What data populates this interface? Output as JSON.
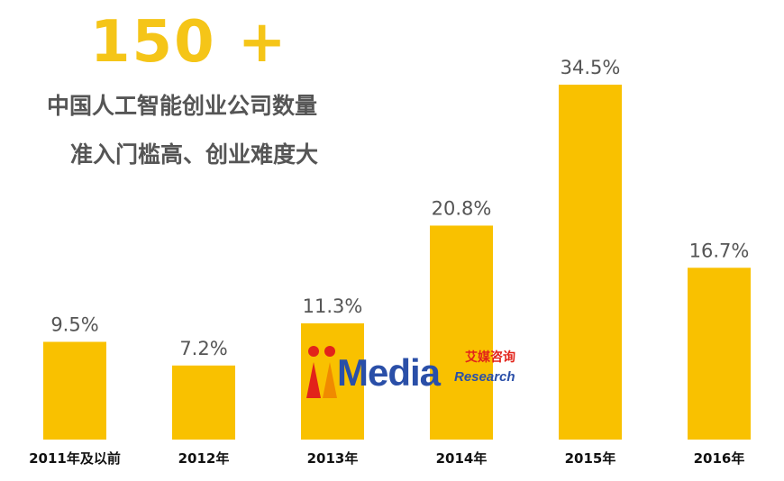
{
  "headline": "150 +",
  "subtitle_line1": "中国人工智能创业公司数量",
  "subtitle_line2": "准入门槛高、创业难度大",
  "watermark": {
    "brand": "Media",
    "cn": "艾媒咨询",
    "en": "Research"
  },
  "colors": {
    "bar": "#F9C100",
    "headline": "#F5C518",
    "text": "#555555",
    "label": "#111111"
  },
  "chart_data": {
    "type": "bar",
    "categories": [
      "2011年及以前",
      "2012年",
      "2013年",
      "2014年",
      "2015年",
      "2016年"
    ],
    "values": [
      9.5,
      7.2,
      11.3,
      20.8,
      34.5,
      16.7
    ],
    "value_labels": [
      "9.5%",
      "7.2%",
      "11.3%",
      "20.8%",
      "34.5%",
      "16.7%"
    ],
    "ylim": [
      0,
      34.5
    ],
    "grid": false,
    "legend": "none"
  }
}
